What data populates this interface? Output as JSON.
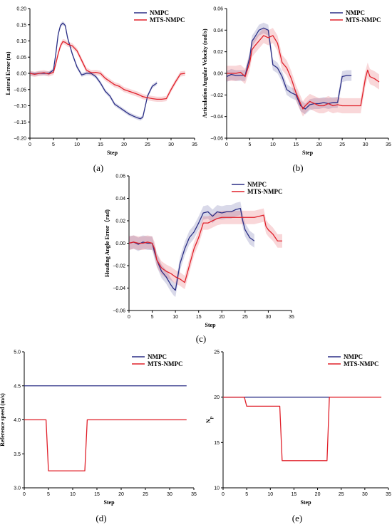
{
  "chart_data": [
    {
      "id": "a",
      "type": "line",
      "panel_label": "(a)",
      "xlabel": "Step",
      "ylabel": "Lateral Error (m)",
      "xlim": [
        0,
        35
      ],
      "ylim": [
        -0.2,
        0.2
      ],
      "xticks": [
        0,
        5,
        10,
        15,
        20,
        25,
        30,
        35
      ],
      "yticks": [
        -0.2,
        -0.15,
        -0.1,
        -0.05,
        0.0,
        0.05,
        0.1,
        0.15,
        0.2
      ],
      "ytick_labels": [
        "−0.20",
        "−0.15",
        "−0.10",
        "−0.05",
        "0.00",
        "0.05",
        "0.10",
        "0.15",
        "0.20"
      ],
      "legend": "top-right",
      "series": [
        {
          "name": "NMPC",
          "color": "#2b2f86",
          "band": 0.006,
          "x": [
            0,
            1,
            2,
            3,
            4,
            5,
            5.5,
            6,
            6.5,
            7,
            7.5,
            8,
            9,
            10,
            11,
            12,
            13,
            14,
            15,
            16,
            17,
            18,
            19,
            20,
            21,
            22,
            23,
            23.5,
            24,
            25,
            26,
            27
          ],
          "y": [
            0.0,
            -0.002,
            0.0,
            0.0,
            0.0,
            0.01,
            0.06,
            0.12,
            0.148,
            0.155,
            0.148,
            0.11,
            0.06,
            0.02,
            -0.005,
            0.0,
            0.0,
            -0.01,
            -0.03,
            -0.055,
            -0.07,
            -0.095,
            -0.105,
            -0.115,
            -0.125,
            -0.132,
            -0.138,
            -0.14,
            -0.135,
            -0.07,
            -0.04,
            -0.03
          ]
        },
        {
          "name": "MTS-NMPC",
          "color": "#e0202a",
          "band": 0.008,
          "x": [
            0,
            1,
            2,
            3,
            4,
            5,
            5.5,
            6,
            6.5,
            7,
            7.5,
            8,
            9,
            10,
            11,
            12,
            13,
            14,
            15,
            16,
            17,
            18,
            19,
            20,
            21,
            22,
            23,
            24,
            25,
            26,
            27,
            28,
            29,
            30,
            31,
            32,
            33
          ],
          "y": [
            0.0,
            -0.003,
            0.0,
            0.002,
            -0.002,
            0.003,
            0.03,
            0.06,
            0.085,
            0.098,
            0.096,
            0.09,
            0.085,
            0.07,
            0.04,
            0.01,
            0.002,
            0.003,
            0.0,
            -0.015,
            -0.025,
            -0.035,
            -0.04,
            -0.05,
            -0.055,
            -0.06,
            -0.065,
            -0.072,
            -0.075,
            -0.078,
            -0.08,
            -0.08,
            -0.078,
            -0.05,
            -0.025,
            -0.002,
            0.0
          ]
        }
      ]
    },
    {
      "id": "b",
      "type": "line",
      "panel_label": "(b)",
      "xlabel": "Step",
      "ylabel": "Articulation Angular Velocity (rad/s)",
      "xlim": [
        0,
        35
      ],
      "ylim": [
        -0.06,
        0.06
      ],
      "xticks": [
        0,
        5,
        10,
        15,
        20,
        25,
        30,
        35
      ],
      "yticks": [
        -0.06,
        -0.04,
        -0.02,
        0.0,
        0.02,
        0.04,
        0.06
      ],
      "ytick_labels": [
        "−0.06",
        "−0.04",
        "−0.02",
        "0.00",
        "0.02",
        "0.04",
        "0.06"
      ],
      "legend": "top-right",
      "series": [
        {
          "name": "NMPC",
          "color": "#2b2f86",
          "band": 0.005,
          "x": [
            0,
            1,
            2,
            3,
            4,
            5,
            5.5,
            6,
            7,
            8,
            9,
            10,
            11,
            12,
            13,
            14,
            15,
            16,
            17,
            18,
            19,
            20,
            21,
            22,
            23,
            24,
            25,
            26,
            27
          ],
          "y": [
            -0.003,
            -0.001,
            -0.002,
            -0.002,
            -0.002,
            0.015,
            0.03,
            0.033,
            0.04,
            0.042,
            0.04,
            0.008,
            0.005,
            -0.003,
            -0.015,
            -0.018,
            -0.02,
            -0.03,
            -0.033,
            -0.029,
            -0.028,
            -0.028,
            -0.027,
            -0.028,
            -0.027,
            -0.027,
            -0.003,
            -0.002,
            -0.002
          ]
        },
        {
          "name": "MTS-NMPC",
          "color": "#e0202a",
          "band": 0.007,
          "x": [
            0,
            1,
            2,
            3,
            4,
            5,
            5.5,
            6,
            7,
            8,
            9,
            10,
            11,
            12,
            13,
            14,
            15,
            16,
            16.5,
            17,
            18,
            19,
            20,
            21,
            22,
            23,
            24,
            25,
            26,
            27,
            28,
            29,
            30,
            30.5,
            31,
            32,
            33
          ],
          "y": [
            0.0,
            0.0,
            0.0,
            0.001,
            -0.003,
            0.01,
            0.022,
            0.025,
            0.03,
            0.035,
            0.033,
            0.035,
            0.028,
            0.01,
            0.005,
            -0.005,
            -0.018,
            -0.028,
            -0.033,
            -0.03,
            -0.026,
            -0.028,
            -0.03,
            -0.03,
            -0.028,
            -0.03,
            -0.029,
            -0.03,
            -0.03,
            -0.03,
            -0.03,
            -0.03,
            -0.005,
            0.003,
            -0.003,
            -0.005,
            -0.008
          ]
        }
      ]
    },
    {
      "id": "c",
      "type": "line",
      "panel_label": "(c)",
      "xlabel": "Step",
      "ylabel": "Heading Angle Error（rad)",
      "xlim": [
        0,
        35
      ],
      "ylim": [
        -0.06,
        0.06
      ],
      "xticks": [
        0,
        5,
        10,
        15,
        20,
        25,
        30,
        35
      ],
      "yticks": [
        -0.06,
        -0.04,
        -0.02,
        0.0,
        0.02,
        0.04,
        0.06
      ],
      "ytick_labels": [
        "−0.06",
        "−0.04",
        "−0.02",
        "0.00",
        "0.02",
        "0.04",
        "0.06"
      ],
      "legend": "top-right",
      "series": [
        {
          "name": "NMPC",
          "color": "#2b2f86",
          "band": 0.006,
          "x": [
            0,
            1,
            2,
            3,
            4,
            5,
            5.5,
            6,
            7,
            8,
            9,
            9.5,
            10,
            11,
            12,
            13,
            14,
            15,
            16,
            17,
            18,
            19,
            20,
            21,
            22,
            23,
            24,
            24.5,
            25,
            26,
            27
          ],
          "y": [
            0.0,
            0.001,
            -0.001,
            0.001,
            0.0,
            0.0,
            -0.008,
            -0.015,
            -0.025,
            -0.03,
            -0.037,
            -0.04,
            -0.042,
            -0.018,
            -0.005,
            0.005,
            0.01,
            0.018,
            0.027,
            0.028,
            0.024,
            0.028,
            0.027,
            0.028,
            0.028,
            0.03,
            0.031,
            0.02,
            0.012,
            0.005,
            0.002
          ]
        },
        {
          "name": "MTS-NMPC",
          "color": "#e0202a",
          "band": 0.006,
          "x": [
            0,
            1,
            2,
            3,
            4,
            5,
            5.5,
            6,
            7,
            8,
            9,
            10,
            11,
            12,
            13,
            14,
            15,
            16,
            17,
            18,
            19,
            20,
            21,
            22,
            23,
            24,
            25,
            26,
            27,
            28,
            29,
            29.5,
            30,
            31,
            32,
            33
          ],
          "y": [
            0.0,
            0.001,
            0.0,
            0.0,
            0.001,
            0.0,
            -0.005,
            -0.015,
            -0.022,
            -0.025,
            -0.027,
            -0.03,
            -0.032,
            -0.035,
            -0.02,
            -0.005,
            0.005,
            0.018,
            0.018,
            0.02,
            0.022,
            0.023,
            0.023,
            0.023,
            0.023,
            0.023,
            0.023,
            0.023,
            0.023,
            0.024,
            0.025,
            0.015,
            0.012,
            0.008,
            0.002,
            0.002
          ]
        }
      ]
    },
    {
      "id": "d",
      "type": "line",
      "panel_label": "(d)",
      "xlabel": "Step",
      "ylabel": "Reference speed (m/s)",
      "xlim": [
        0,
        35
      ],
      "ylim": [
        3.0,
        5.0
      ],
      "xticks": [
        0,
        5,
        10,
        15,
        20,
        25,
        30,
        35
      ],
      "yticks": [
        3.0,
        3.5,
        4.0,
        4.5,
        5.0
      ],
      "ytick_labels": [
        "3.0",
        "3.5",
        "4.0",
        "4.5",
        "5.0"
      ],
      "legend": "top-right",
      "series": [
        {
          "name": "NMPC",
          "color": "#2b2f86",
          "band": 0,
          "x": [
            0,
            33.5
          ],
          "y": [
            4.5,
            4.5
          ]
        },
        {
          "name": "MTS-NMPC",
          "color": "#e0202a",
          "band": 0,
          "x": [
            0,
            4.5,
            5,
            12.5,
            13,
            33.5
          ],
          "y": [
            4.0,
            4.0,
            3.25,
            3.25,
            4.0,
            4.0
          ]
        }
      ]
    },
    {
      "id": "e",
      "type": "line",
      "panel_label": "(e)",
      "xlabel": "Step",
      "ylabel": "Np",
      "xlim": [
        0,
        35
      ],
      "ylim": [
        10,
        25
      ],
      "xticks": [
        0,
        5,
        10,
        15,
        20,
        25,
        30,
        35
      ],
      "yticks": [
        10,
        15,
        20,
        25
      ],
      "ytick_labels": [
        "10",
        "15",
        "20",
        "25"
      ],
      "legend": "top-right",
      "series": [
        {
          "name": "NMPC",
          "color": "#2b2f86",
          "band": 0,
          "x": [
            0,
            22.5
          ],
          "y": [
            20,
            20
          ]
        },
        {
          "name": "MTS-NMPC",
          "color": "#e0202a",
          "band": 0,
          "x": [
            0,
            4.5,
            5,
            12,
            12.5,
            22,
            22.5,
            33.5
          ],
          "y": [
            20,
            20,
            19,
            19,
            13,
            13,
            20,
            20
          ]
        }
      ]
    }
  ]
}
